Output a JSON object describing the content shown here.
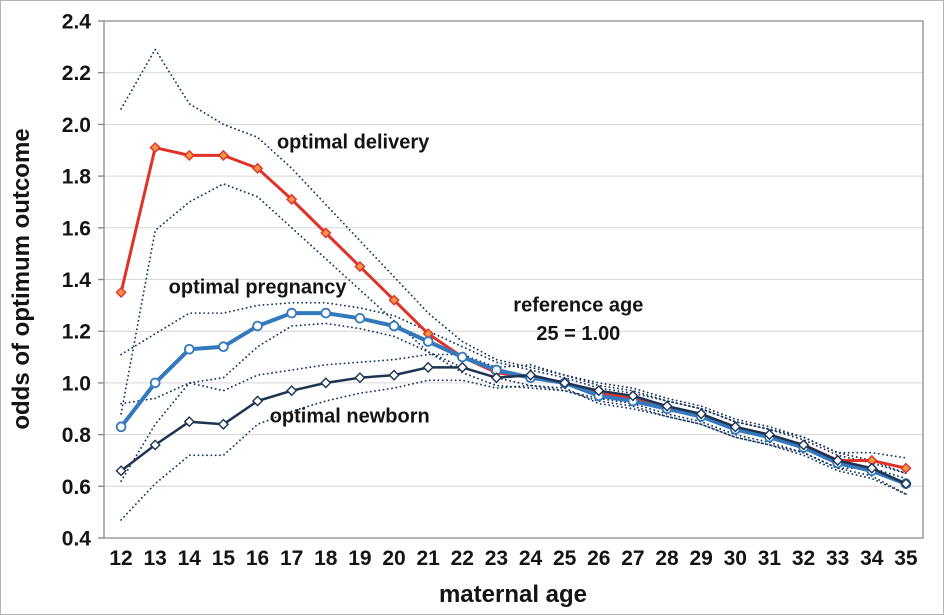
{
  "chart_data": {
    "type": "line",
    "title": "",
    "xlabel": "maternal age",
    "ylabel": "odds of optimum outcome",
    "x": [
      12,
      13,
      14,
      15,
      16,
      17,
      18,
      19,
      20,
      21,
      22,
      23,
      24,
      25,
      26,
      27,
      28,
      29,
      30,
      31,
      32,
      33,
      34,
      35
    ],
    "xlim": [
      11.5,
      35.5
    ],
    "ylim": [
      0.4,
      2.4
    ],
    "ytick_step": 0.2,
    "grid": "horizontal",
    "legend_position": "none",
    "colors": {
      "grid": "#d6d6d6",
      "axis": "#8c8c8c",
      "text": "#141414",
      "ci": "#17375e"
    },
    "series": [
      {
        "name": "optimal delivery",
        "role": "estimate",
        "color": "#e03226",
        "width": 3,
        "style": "solid",
        "marker": "diamond",
        "marker_fill": "#f79646",
        "values": [
          1.35,
          1.91,
          1.88,
          1.88,
          1.83,
          1.71,
          1.58,
          1.45,
          1.32,
          1.19,
          1.1,
          1.04,
          1.02,
          1.0,
          0.96,
          0.94,
          0.9,
          0.87,
          0.82,
          0.79,
          0.76,
          0.7,
          0.7,
          0.67
        ]
      },
      {
        "name": "optimal delivery CI upper",
        "role": "ci-upper",
        "color": "#17375e",
        "width": 1.8,
        "style": "dotted",
        "marker": "none",
        "values": [
          2.06,
          2.29,
          2.08,
          2.0,
          1.95,
          1.83,
          1.69,
          1.55,
          1.41,
          1.27,
          1.16,
          1.09,
          1.06,
          1.03,
          0.99,
          0.97,
          0.93,
          0.9,
          0.85,
          0.82,
          0.79,
          0.73,
          0.73,
          0.71
        ]
      },
      {
        "name": "optimal delivery CI lower",
        "role": "ci-lower",
        "color": "#17375e",
        "width": 1.8,
        "style": "dotted",
        "marker": "none",
        "values": [
          0.88,
          1.59,
          1.7,
          1.77,
          1.72,
          1.6,
          1.48,
          1.36,
          1.24,
          1.12,
          1.04,
          0.99,
          0.98,
          0.97,
          0.93,
          0.91,
          0.87,
          0.84,
          0.79,
          0.76,
          0.73,
          0.67,
          0.67,
          0.63
        ]
      },
      {
        "name": "optimal pregnancy",
        "role": "estimate",
        "color": "#3579bd",
        "width": 4,
        "style": "solid",
        "marker": "circle",
        "marker_fill": "#ffffff",
        "values": [
          0.83,
          1.0,
          1.13,
          1.14,
          1.22,
          1.27,
          1.27,
          1.25,
          1.22,
          1.16,
          1.1,
          1.05,
          1.02,
          1.0,
          0.95,
          0.93,
          0.9,
          0.87,
          0.82,
          0.79,
          0.75,
          0.69,
          0.66,
          0.61
        ]
      },
      {
        "name": "optimal pregnancy CI upper",
        "role": "ci-upper",
        "color": "#17375e",
        "width": 1.8,
        "style": "dotted",
        "marker": "none",
        "values": [
          1.11,
          1.19,
          1.27,
          1.27,
          1.3,
          1.31,
          1.31,
          1.29,
          1.26,
          1.2,
          1.14,
          1.08,
          1.05,
          1.02,
          0.98,
          0.96,
          0.93,
          0.9,
          0.85,
          0.82,
          0.78,
          0.72,
          0.69,
          0.65
        ]
      },
      {
        "name": "optimal pregnancy CI lower",
        "role": "ci-lower",
        "color": "#17375e",
        "width": 1.8,
        "style": "dotted",
        "marker": "none",
        "values": [
          0.62,
          0.84,
          1.0,
          1.02,
          1.14,
          1.22,
          1.23,
          1.21,
          1.18,
          1.12,
          1.06,
          1.02,
          0.99,
          0.98,
          0.92,
          0.9,
          0.87,
          0.84,
          0.79,
          0.76,
          0.72,
          0.66,
          0.63,
          0.57
        ]
      },
      {
        "name": "optimal newborn",
        "role": "estimate",
        "color": "#1f3352",
        "width": 2.5,
        "style": "solid",
        "marker": "diamond",
        "marker_fill": "#ffffff",
        "values": [
          0.66,
          0.76,
          0.85,
          0.84,
          0.93,
          0.97,
          1.0,
          1.02,
          1.03,
          1.06,
          1.06,
          1.02,
          1.03,
          1.0,
          0.97,
          0.95,
          0.91,
          0.88,
          0.83,
          0.8,
          0.76,
          0.7,
          0.67,
          0.61
        ]
      },
      {
        "name": "optimal newborn CI upper",
        "role": "ci-upper",
        "color": "#17375e",
        "width": 1.8,
        "style": "dotted",
        "marker": "none",
        "values": [
          0.92,
          0.94,
          1.0,
          0.97,
          1.03,
          1.05,
          1.07,
          1.08,
          1.09,
          1.11,
          1.11,
          1.06,
          1.07,
          1.03,
          1.0,
          0.98,
          0.94,
          0.91,
          0.86,
          0.83,
          0.79,
          0.73,
          0.7,
          0.65
        ]
      },
      {
        "name": "optimal newborn CI lower",
        "role": "ci-lower",
        "color": "#17375e",
        "width": 1.8,
        "style": "dotted",
        "marker": "none",
        "values": [
          0.47,
          0.61,
          0.72,
          0.72,
          0.84,
          0.89,
          0.93,
          0.96,
          0.98,
          1.01,
          1.01,
          0.98,
          0.99,
          0.97,
          0.94,
          0.92,
          0.88,
          0.85,
          0.8,
          0.77,
          0.73,
          0.67,
          0.64,
          0.57
        ]
      }
    ],
    "annotations": [
      {
        "text": "optimal delivery",
        "x": 18.8,
        "y": 1.93
      },
      {
        "text": "optimal pregnancy",
        "x": 16.0,
        "y": 1.37
      },
      {
        "text": "optimal newborn",
        "x": 18.7,
        "y": 0.87
      },
      {
        "text": "reference age",
        "x": 25.4,
        "y": 1.3
      },
      {
        "text": "25 = 1.00",
        "x": 25.4,
        "y": 1.19
      }
    ]
  }
}
